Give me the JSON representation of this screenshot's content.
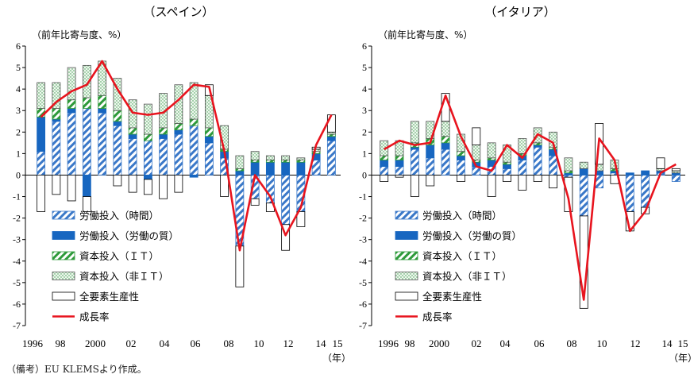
{
  "note": "（備考）EU KLEMSより作成。",
  "chart_data": [
    {
      "type": "bar",
      "title": "（スペイン）",
      "ylabel": "（前年比寄与度、%）",
      "ylim": [
        -7,
        6
      ],
      "yticks": [
        6,
        5,
        4,
        3,
        2,
        1,
        0,
        -1,
        -2,
        -3,
        -4,
        -5,
        -6,
        -7
      ],
      "grid": false,
      "legend_position": "bottom-left",
      "stacked": true,
      "categories": [
        1996,
        1997,
        1998,
        1999,
        2000,
        2001,
        2002,
        2003,
        2004,
        2005,
        2006,
        2007,
        2008,
        2009,
        2010,
        2011,
        2012,
        2013,
        2014,
        2015
      ],
      "xtick_labels": [
        "1996",
        "98",
        "2000",
        "02",
        "04",
        "06",
        "08",
        "10",
        "12",
        "14",
        "15"
      ],
      "x_unit": "（年）",
      "series": [
        {
          "name": "労働投入（時間）",
          "values": [
            1.1,
            2.5,
            2.9,
            3.1,
            2.9,
            2.3,
            1.7,
            1.6,
            1.7,
            1.9,
            2.3,
            1.5,
            0.8,
            -3.3,
            -1.1,
            -1.3,
            -2.3,
            -1.7,
            0.7,
            1.6
          ]
        },
        {
          "name": "労働投入（労働の質）",
          "values": [
            1.6,
            0.1,
            0.2,
            -1.0,
            0.2,
            0.2,
            0.2,
            -0.2,
            0.2,
            0.2,
            -0.1,
            0.3,
            0.3,
            0.2,
            0.6,
            0.6,
            0.6,
            0.6,
            0.3,
            0.2
          ]
        },
        {
          "name": "資本投入（ＩＴ）",
          "values": [
            0.4,
            0.5,
            0.4,
            0.5,
            0.6,
            0.5,
            0.3,
            0.3,
            0.3,
            0.3,
            0.3,
            0.4,
            0.1,
            0.1,
            0.1,
            0.1,
            0.1,
            0.1,
            0.1,
            0.1
          ]
        },
        {
          "name": "資本投入（非ＩＴ）",
          "values": [
            1.2,
            1.2,
            1.5,
            1.5,
            1.6,
            1.5,
            1.3,
            1.4,
            1.6,
            1.8,
            1.7,
            1.5,
            1.1,
            0.6,
            0.4,
            0.2,
            0.2,
            0.1,
            0.1,
            0.1
          ]
        },
        {
          "name": "全要素生産性",
          "values": [
            -1.7,
            -0.9,
            -1.2,
            -0.7,
            0.0,
            -0.5,
            -0.8,
            -0.7,
            -1.1,
            -0.8,
            0.0,
            0.5,
            -1.0,
            -1.9,
            -0.3,
            -0.4,
            -1.2,
            -0.7,
            0.1,
            0.8
          ]
        },
        {
          "name": "成長率",
          "type": "line",
          "values": [
            2.7,
            3.4,
            3.9,
            4.2,
            5.3,
            4.0,
            2.9,
            2.8,
            2.9,
            3.5,
            4.2,
            4.1,
            1.1,
            -3.5,
            0.0,
            -1.0,
            -2.8,
            -1.5,
            1.4,
            2.8
          ]
        }
      ]
    },
    {
      "type": "bar",
      "title": "（イタリア）",
      "ylabel": "（前年比寄与度、%）",
      "ylim": [
        -7,
        6
      ],
      "yticks": [
        6,
        5,
        4,
        3,
        2,
        1,
        0,
        -1,
        -2,
        -3,
        -4,
        -5,
        -6,
        -7
      ],
      "grid": false,
      "legend_position": "bottom-left",
      "stacked": true,
      "categories": [
        1996,
        1997,
        1998,
        1999,
        2000,
        2001,
        2002,
        2003,
        2004,
        2005,
        2006,
        2007,
        2008,
        2009,
        2010,
        2011,
        2012,
        2013,
        2014,
        2015
      ],
      "xtick_labels": [
        "1996",
        "98",
        "2000",
        "02",
        "04",
        "06",
        "08",
        "10",
        "12",
        "14",
        "15"
      ],
      "x_unit": "（年）",
      "series": [
        {
          "name": "労働投入（時間）",
          "values": [
            0.4,
            0.4,
            1.2,
            0.8,
            1.2,
            0.7,
            0.4,
            0.4,
            0.3,
            0.7,
            1.3,
            0.9,
            -0.1,
            -1.9,
            -0.6,
            0.1,
            -1.7,
            -1.5,
            0.1,
            -0.3
          ]
        },
        {
          "name": "労働投入（労働の質）",
          "values": [
            0.3,
            0.3,
            0.1,
            0.6,
            0.3,
            0.2,
            0.2,
            0.3,
            0.2,
            0.2,
            0.1,
            0.3,
            0.1,
            0.3,
            0.2,
            0.1,
            0.1,
            0.2,
            0.1,
            0.1
          ]
        },
        {
          "name": "資本投入（ＩＴ）",
          "values": [
            0.2,
            0.2,
            0.2,
            0.3,
            0.3,
            0.2,
            0.1,
            0.1,
            0.1,
            0.1,
            0.1,
            0.1,
            0.1,
            0.0,
            0.0,
            0.1,
            0.0,
            0.0,
            0.0,
            0.0
          ]
        },
        {
          "name": "資本投入（非ＩＴ）",
          "values": [
            0.7,
            0.7,
            1.0,
            0.8,
            0.7,
            0.8,
            0.7,
            0.7,
            0.8,
            0.7,
            0.7,
            0.7,
            0.6,
            0.3,
            0.3,
            0.4,
            0.0,
            0.0,
            0.1,
            0.1
          ]
        },
        {
          "name": "全要素生産性",
          "values": [
            -0.3,
            -0.1,
            -1.0,
            -0.5,
            1.3,
            -0.3,
            0.8,
            -1.0,
            -0.3,
            -0.7,
            -0.3,
            -0.6,
            -1.6,
            -4.3,
            1.9,
            -0.4,
            -0.9,
            -0.3,
            0.5,
            0.1
          ]
        },
        {
          "name": "成長率",
          "type": "line",
          "values": [
            1.2,
            1.6,
            1.4,
            1.5,
            3.7,
            1.8,
            0.4,
            0.2,
            1.4,
            0.8,
            1.9,
            1.5,
            -1.1,
            -5.8,
            1.7,
            0.7,
            -2.6,
            -1.7,
            0.1,
            0.5
          ]
        }
      ]
    }
  ]
}
